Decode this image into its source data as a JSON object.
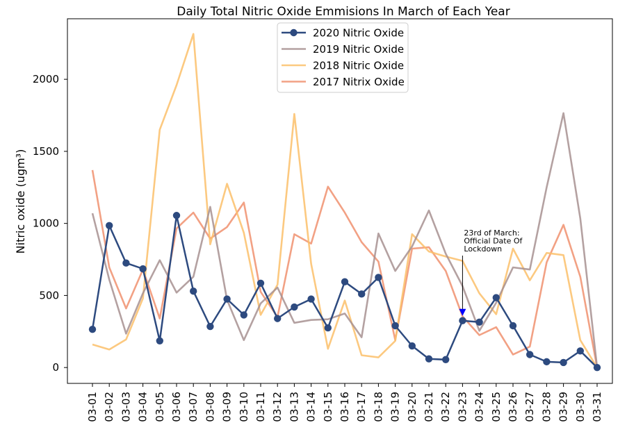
{
  "chart_data": {
    "type": "line",
    "title": "Daily Total Nitric Oxide Emmisions In March of Each Year",
    "xlabel": "",
    "ylabel": "Nitric oxide (ugm³)",
    "ylim": [
      -110,
      2420
    ],
    "yticks": [
      0,
      500,
      1000,
      1500,
      2000
    ],
    "grid": false,
    "legend_position": "upper-center",
    "categories": [
      "03-01",
      "03-02",
      "03-03",
      "03-04",
      "03-05",
      "03-06",
      "03-07",
      "03-08",
      "03-09",
      "03-10",
      "03-11",
      "03-12",
      "03-13",
      "03-14",
      "03-15",
      "03-16",
      "03-17",
      "03-18",
      "03-19",
      "03-20",
      "03-21",
      "03-22",
      "03-23",
      "03-24",
      "03-25",
      "03-26",
      "03-27",
      "03-28",
      "03-29",
      "03-30",
      "03-31"
    ],
    "series": [
      {
        "name": "2020 Nitric Oxide",
        "color": "#2d4a7f",
        "markers": true,
        "values": [
          265,
          985,
          725,
          685,
          185,
          1055,
          530,
          285,
          475,
          365,
          585,
          340,
          420,
          475,
          275,
          595,
          510,
          625,
          290,
          150,
          60,
          55,
          325,
          315,
          485,
          290,
          90,
          40,
          35,
          115,
          0
        ]
      },
      {
        "name": "2019 Nitric Oxide",
        "color": "#a79191",
        "markers": false,
        "values": [
          1070,
          610,
          235,
          515,
          745,
          520,
          630,
          1115,
          470,
          190,
          445,
          555,
          310,
          330,
          335,
          375,
          210,
          930,
          670,
          840,
          1090,
          790,
          565,
          255,
          450,
          695,
          680,
          1250,
          1765,
          1035,
          0
        ]
      },
      {
        "name": "2018 Nitric Oxide",
        "color": "#fcbf6a",
        "markers": false,
        "values": [
          160,
          125,
          195,
          480,
          1650,
          1960,
          2315,
          855,
          1275,
          935,
          365,
          575,
          1760,
          720,
          130,
          465,
          85,
          70,
          185,
          925,
          805,
          770,
          740,
          515,
          370,
          825,
          605,
          795,
          780,
          190,
          0
        ]
      },
      {
        "name": "2017 Nitrix Oxide",
        "color": "#f0906f",
        "markers": false,
        "values": [
          1370,
          695,
          410,
          680,
          340,
          965,
          1075,
          895,
          975,
          1145,
          525,
          350,
          925,
          860,
          1255,
          1075,
          870,
          735,
          190,
          825,
          835,
          670,
          355,
          225,
          280,
          90,
          145,
          730,
          990,
          630,
          0
        ]
      }
    ],
    "annotation": {
      "text_lines": [
        "23rd of March:",
        "Official Date Of",
        "Lockdown"
      ],
      "category": "03-23",
      "arrow_color": "#0000ff"
    }
  }
}
